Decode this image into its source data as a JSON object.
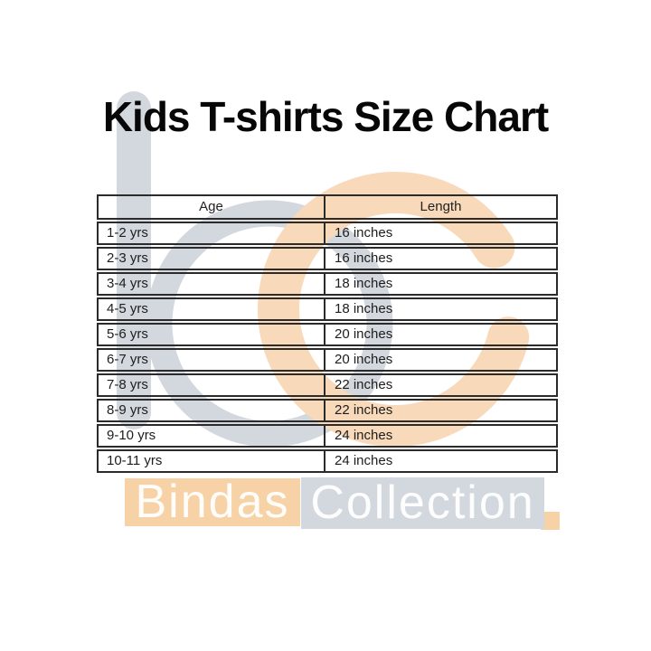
{
  "chart_data": {
    "type": "table",
    "title": "Kids T-shirts Size Chart",
    "columns": [
      "Age",
      "Length"
    ],
    "rows": [
      [
        "1-2 yrs",
        "16 inches"
      ],
      [
        "2-3 yrs",
        "16 inches"
      ],
      [
        "3-4 yrs",
        "18 inches"
      ],
      [
        "4-5 yrs",
        "18 inches"
      ],
      [
        "5-6 yrs",
        "20 inches"
      ],
      [
        "6-7 yrs",
        "20 inches"
      ],
      [
        "7-8 yrs",
        "22 inches"
      ],
      [
        "8-9 yrs",
        "22 inches"
      ],
      [
        "9-10 yrs",
        "24 inches"
      ],
      [
        "10-11 yrs",
        "24 inches"
      ]
    ]
  },
  "watermark": {
    "monogram": "bc",
    "brand_first": "Bindas",
    "brand_second": "Collection",
    "colors": {
      "gray": "#d3d8de",
      "orange_ring": "#f8d9ba",
      "orange_block": "#f7d2a7",
      "text": "#ffffff"
    }
  }
}
